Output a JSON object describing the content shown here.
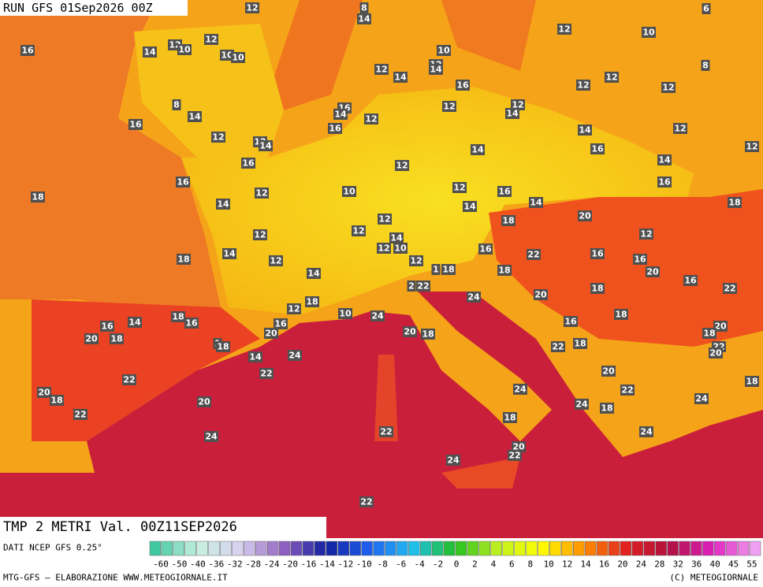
{
  "header": {
    "run": "RUN GFS 01Sep2026 00Z",
    "field": "TMP 2 METRI Val. 00Z11SEP2026"
  },
  "footer": {
    "source": "DATI NCEP GFS 0.25°",
    "credit": "MTG-GFS — ELABORAZIONE WWW.METEOGIORNALE.IT",
    "copyright": "(C) METEOGIORNALE"
  },
  "legend": {
    "labels": [
      -60,
      -50,
      -40,
      -36,
      -32,
      -28,
      -24,
      -20,
      -16,
      -14,
      -12,
      -10,
      -8,
      -6,
      -4,
      -2,
      0,
      2,
      4,
      6,
      8,
      10,
      12,
      14,
      16,
      20,
      24,
      28,
      32,
      36,
      40,
      45,
      55
    ]
  },
  "map": {
    "labels": [
      16,
      14,
      12,
      10,
      12,
      12,
      8,
      14,
      10,
      10,
      12,
      10,
      6,
      8,
      10,
      12,
      14,
      12,
      14,
      16,
      12,
      12,
      12,
      8,
      14,
      16,
      14,
      12,
      12,
      12,
      14,
      16,
      16,
      12,
      12,
      14,
      14,
      12,
      12,
      14,
      16,
      16,
      12,
      14,
      16,
      18,
      10,
      12,
      16,
      16,
      12,
      14,
      14,
      14,
      18,
      20,
      12,
      18,
      12,
      14,
      12,
      12,
      12,
      10,
      14,
      18,
      12,
      16,
      22,
      16,
      16,
      12,
      1,
      18,
      14,
      18,
      20,
      16,
      2,
      22,
      22,
      18,
      20,
      18,
      24,
      12,
      18,
      18,
      16,
      14,
      16,
      10,
      24,
      16,
      16,
      20,
      18,
      20,
      18,
      20,
      18,
      20,
      1,
      18,
      22,
      18,
      22,
      20,
      14,
      24,
      20,
      18,
      22,
      22,
      24,
      22,
      20,
      18,
      20,
      24,
      24,
      18,
      22,
      18,
      22,
      24,
      24,
      20,
      22,
      24,
      22
    ]
  }
}
